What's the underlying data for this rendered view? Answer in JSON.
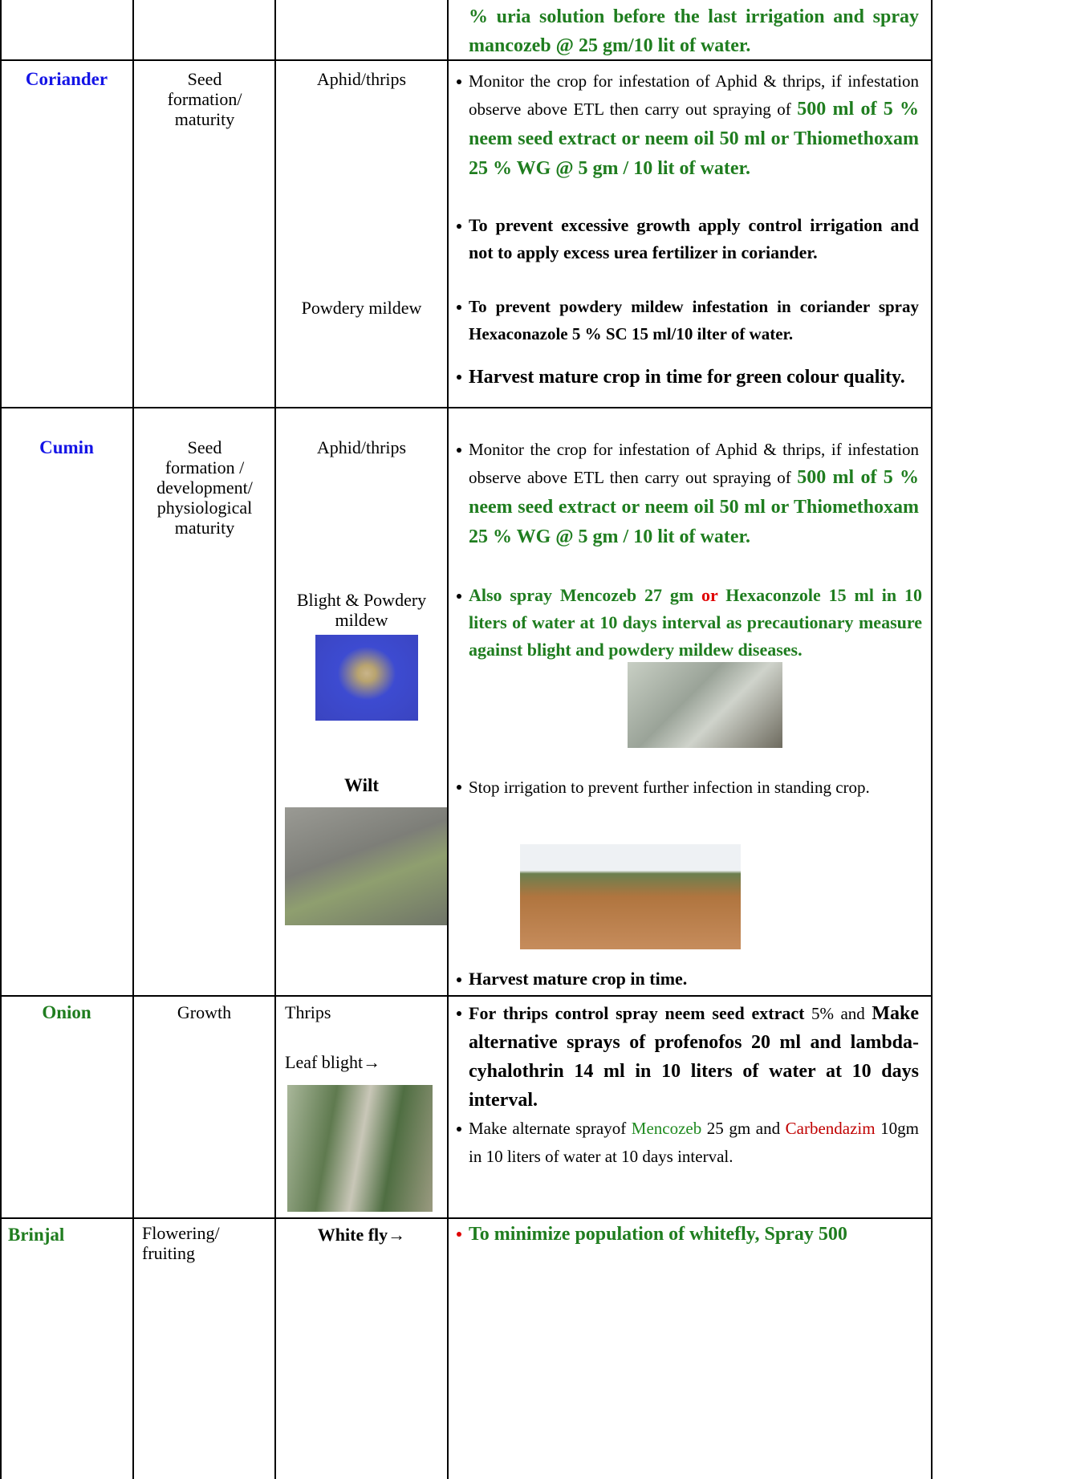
{
  "table": {
    "rows": [
      {
        "advice": [
          [
            "% uria solution before the last irrigation and spray mancozeb @ 25 gm/10 lit of water."
          ]
        ]
      },
      {
        "crop": "Coriander",
        "stage": "Seed formation/ maturity",
        "pests": [
          "Aphid/thrips",
          "Powdery mildew"
        ],
        "advice": [
          [
            "Monitor the crop for infestation of Aphid & thrips, if infestation observe above ETL then carry out spraying of ",
            "500 ml of 5 % neem seed extract or neem oil 50 ml or Thiomethoxam 25 % WG @ 5 gm / 10 lit of water."
          ],
          [
            "To prevent excessive growth apply control irrigation and not to apply excess urea fertilizer in coriander."
          ],
          [
            "To prevent powdery mildew infestation in coriander spray Hexaconazole 5 % SC 15 ml/10 ilter of water."
          ],
          [
            "Harvest mature crop in time for green colour quality."
          ]
        ]
      },
      {
        "crop": "Cumin",
        "stage": "Seed formation / development/ physiological maturity",
        "pests": [
          "Aphid/thrips",
          "Blight & Powdery mildew",
          "Wilt"
        ],
        "advice": [
          [
            "Monitor the crop for infestation of Aphid & thrips, if infestation observe above ETL then carry out spraying of ",
            "500 ml of 5 % neem seed extract or neem oil 50 ml or Thiomethoxam 25 % WG @ 5 gm / 10 lit of water."
          ],
          [
            "Also spray Mencozeb 27 gm ",
            "or",
            " Hexaconzole 15 ml in 10 liters of water at 10 days interval as precautionary measure against blight and powdery mildew diseases."
          ],
          [
            "Stop irrigation to prevent further infection in standing crop."
          ],
          [
            "Harvest mature crop in time."
          ]
        ]
      },
      {
        "crop": "Onion",
        "stage": "Growth",
        "pests": [
          "Thrips",
          "Leaf blight→"
        ],
        "advice": [
          [
            "For thrips control spray neem seed extract",
            " 5% and ",
            "Make alternative sprays of profenofos 20 ml and lambda-cyhalothrin 14 ml in 10 liters of water at 10 days interval."
          ],
          [
            "Make alternate sprayof ",
            "Mencozeb",
            " 25 gm and ",
            "Carbendazim",
            " 10gm in 10 liters of water at 10 days interval."
          ]
        ]
      },
      {
        "crop": "Brinjal",
        "stage": "Flowering/ fruiting",
        "pests": [
          "White fly→"
        ],
        "advice": [
          [
            "To minimize population of whitefly, Spray 500"
          ]
        ]
      }
    ]
  }
}
